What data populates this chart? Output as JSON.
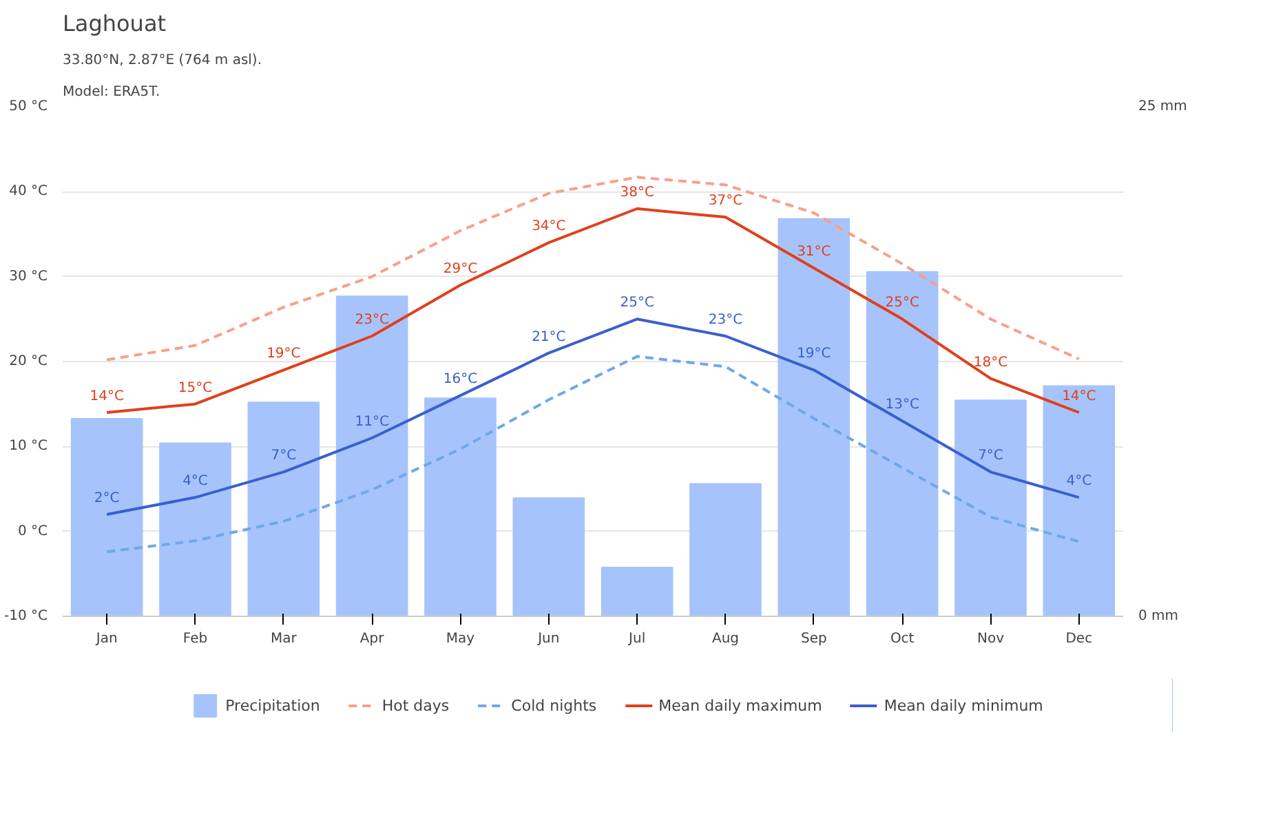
{
  "chart_data": {
    "type": "line",
    "title": "Laghouat",
    "subtitle": "33.80°N, 2.87°E (764 m asl).",
    "annotations": [
      "Model: ERA5T."
    ],
    "categories": [
      "Jan",
      "Feb",
      "Mar",
      "Apr",
      "May",
      "Jun",
      "Jul",
      "Aug",
      "Sep",
      "Oct",
      "Nov",
      "Dec"
    ],
    "series": [
      {
        "name": "Precipitation",
        "type": "bar",
        "axis": "y2",
        "color": "#a6c4fb",
        "values": [
          9.7,
          8.5,
          10.5,
          15.7,
          10.7,
          5.8,
          2.4,
          6.5,
          19.5,
          16.9,
          10.6,
          11.3
        ]
      },
      {
        "name": "Hot days",
        "line_style": "dashed",
        "color": "#f7a08a",
        "values": [
          20.2,
          21.9,
          26.4,
          30,
          35.4,
          39.8,
          41.7,
          40.8,
          37.5,
          31.5,
          25,
          20.3
        ]
      },
      {
        "name": "Cold nights",
        "line_style": "dashed",
        "color": "#6fa8e8",
        "values": [
          -2.4,
          -1.1,
          1.2,
          4.9,
          9.7,
          15.5,
          20.6,
          19.4,
          13.3,
          7.5,
          1.7,
          -1.2
        ]
      },
      {
        "name": "Mean daily maximum",
        "line_style": "solid",
        "color": "#e0401c",
        "values": [
          14,
          15,
          19,
          23,
          29,
          34,
          38,
          37,
          31,
          25,
          18,
          14
        ],
        "value_labels": [
          "14°C",
          "15°C",
          "19°C",
          "23°C",
          "29°C",
          "34°C",
          "38°C",
          "37°C",
          "31°C",
          "25°C",
          "18°C",
          "14°C"
        ]
      },
      {
        "name": "Mean daily minimum",
        "line_style": "solid",
        "color": "#3a5fcd",
        "values": [
          2,
          4,
          7,
          11,
          16,
          21,
          25,
          23,
          19,
          13,
          7,
          4
        ],
        "value_labels": [
          "2°C",
          "4°C",
          "7°C",
          "11°C",
          "16°C",
          "21°C",
          "25°C",
          "23°C",
          "19°C",
          "13°C",
          "7°C",
          "4°C"
        ]
      }
    ],
    "ylim": [
      -10,
      50
    ],
    "yticks": [
      {
        "value": -10,
        "label": "-10 °C"
      },
      {
        "value": 0,
        "label": "0 °C"
      },
      {
        "value": 10,
        "label": "10 °C"
      },
      {
        "value": 20,
        "label": "20 °C"
      },
      {
        "value": 30,
        "label": "30 °C"
      },
      {
        "value": 40,
        "label": "40 °C"
      },
      {
        "value": 50,
        "label": "50 °C"
      }
    ],
    "y2lim": [
      0,
      25
    ],
    "y2ticks": [
      {
        "value": 0,
        "label": "0 mm"
      },
      {
        "value": 25,
        "label": "25 mm"
      }
    ],
    "grid": "y",
    "legend": "bottom"
  }
}
